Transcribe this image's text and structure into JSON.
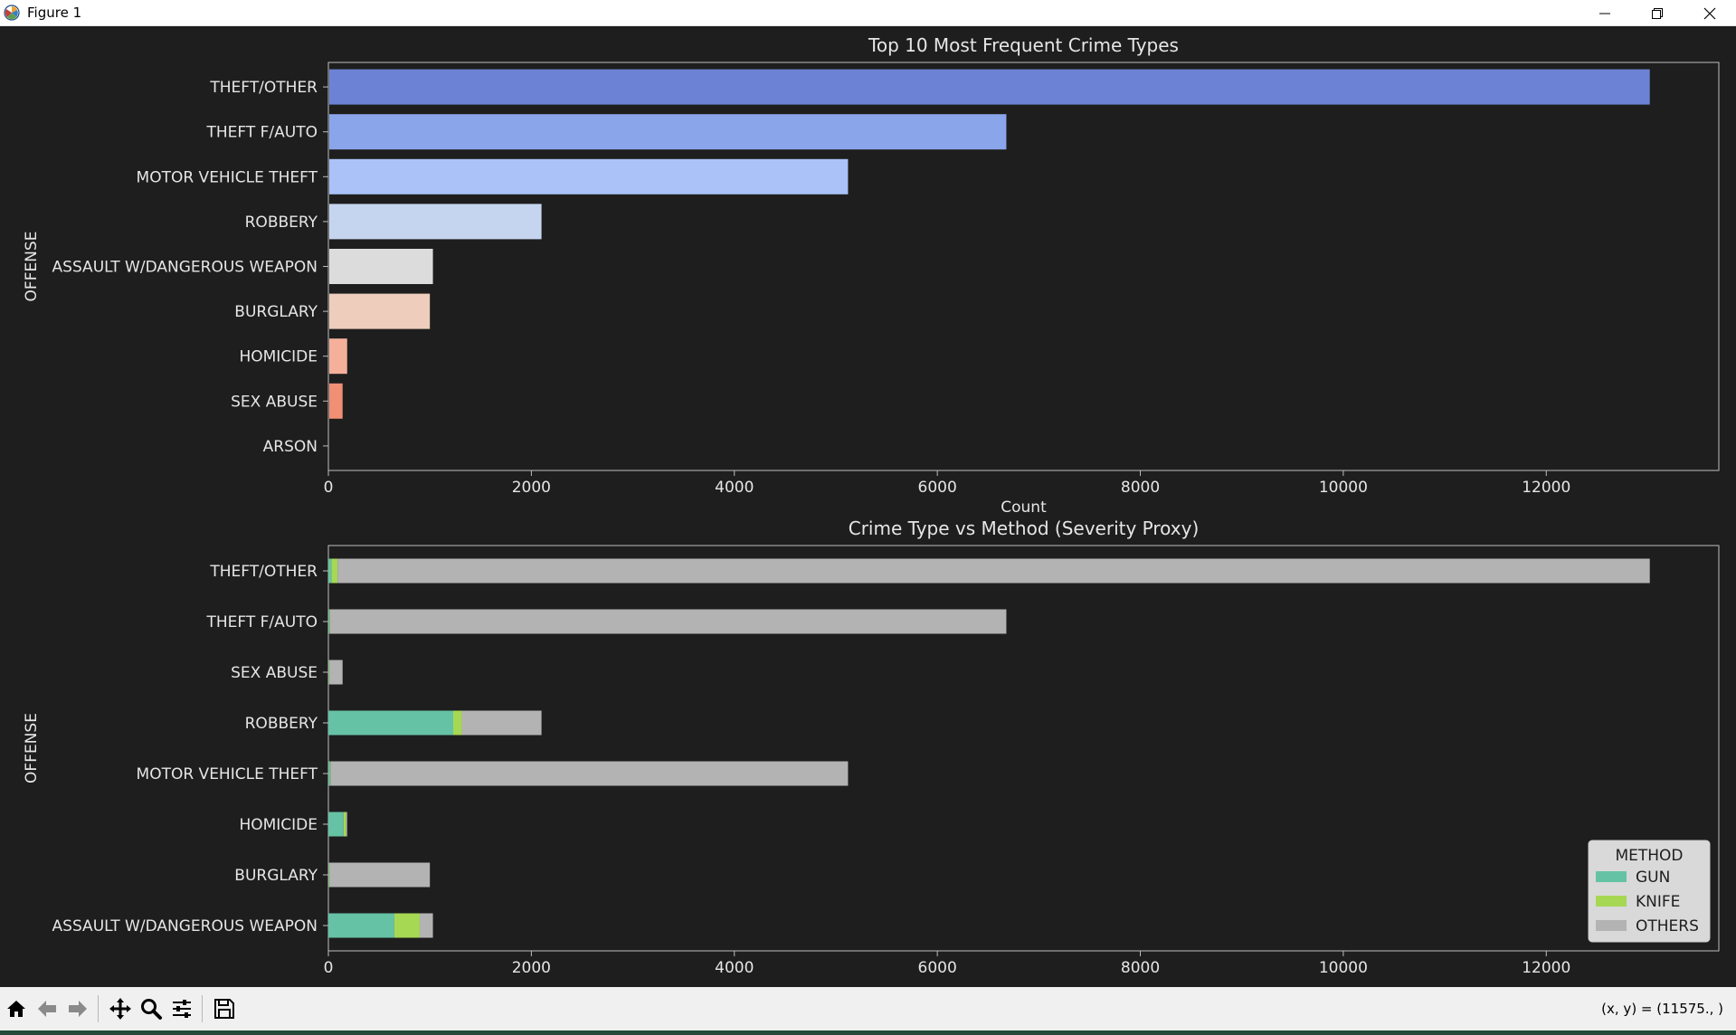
{
  "window": {
    "title": "Figure 1"
  },
  "toolbar": {
    "buttons": [
      {
        "name": "home-button",
        "icon": "home-icon"
      },
      {
        "name": "back-button",
        "icon": "arrow-left-icon"
      },
      {
        "name": "forward-button",
        "icon": "arrow-right-icon"
      },
      {
        "name": "pan-button",
        "icon": "move-icon"
      },
      {
        "name": "zoom-button",
        "icon": "magnifier-icon"
      },
      {
        "name": "configure-button",
        "icon": "sliders-icon"
      },
      {
        "name": "save-button",
        "icon": "floppy-icon"
      }
    ],
    "coords_readout": "(x, y) = (11575., )"
  },
  "chart_data": [
    {
      "type": "bar",
      "orientation": "horizontal",
      "title": "Top 10 Most Frequent Crime Types",
      "xlabel": "Count",
      "ylabel": "OFFENSE",
      "categories": [
        "THEFT/OTHER",
        "THEFT F/AUTO",
        "MOTOR VEHICLE THEFT",
        "ROBBERY",
        "ASSAULT W/DANGEROUS WEAPON",
        "BURGLARY",
        "HOMICIDE",
        "SEX ABUSE",
        "ARSON"
      ],
      "values": [
        13020,
        6680,
        5120,
        2100,
        1030,
        1000,
        185,
        140,
        5
      ],
      "colors": [
        "#6c83d5",
        "#8ba5eb",
        "#aac2f7",
        "#c6d5ef",
        "#dddcdc",
        "#eecdbd",
        "#f4b09a",
        "#ef8f74",
        "#dc5f4b"
      ],
      "xlim": [
        0,
        13700
      ],
      "xticks": [
        0,
        2000,
        4000,
        6000,
        8000,
        10000,
        12000
      ],
      "grid": false
    },
    {
      "type": "bar",
      "orientation": "horizontal",
      "stacked": true,
      "title": "Crime Type vs Method (Severity Proxy)",
      "xlabel": "",
      "ylabel": "OFFENSE",
      "categories": [
        "THEFT/OTHER",
        "THEFT F/AUTO",
        "SEX ABUSE",
        "ROBBERY",
        "MOTOR VEHICLE THEFT",
        "HOMICIDE",
        "BURGLARY",
        "ASSAULT W/DANGEROUS WEAPON"
      ],
      "series": [
        {
          "name": "GUN",
          "color": "#66c2a5",
          "values": [
            30,
            10,
            5,
            1230,
            15,
            150,
            5,
            650
          ]
        },
        {
          "name": "KNIFE",
          "color": "#a6d854",
          "values": [
            60,
            5,
            5,
            85,
            5,
            25,
            5,
            250
          ]
        },
        {
          "name": "OTHERS",
          "color": "#b3b3b3",
          "values": [
            12930,
            6665,
            130,
            785,
            5100,
            10,
            990,
            130
          ]
        }
      ],
      "legend": {
        "title": "METHOD",
        "placement": "lower-right"
      },
      "xlim": [
        0,
        13700
      ],
      "xticks": [
        0,
        2000,
        4000,
        6000,
        8000,
        10000,
        12000
      ],
      "grid": false
    }
  ]
}
